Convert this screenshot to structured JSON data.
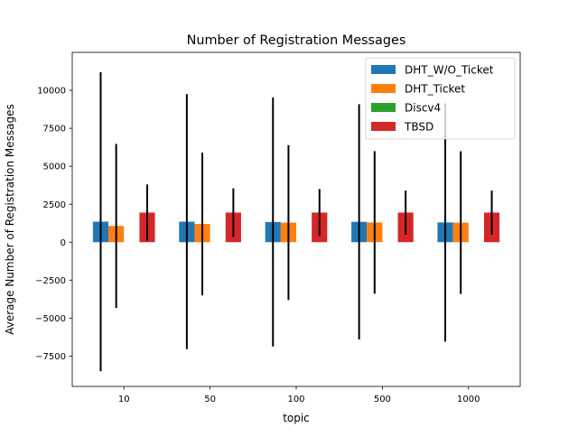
{
  "chart_data": {
    "type": "bar",
    "title": "Number of Registration Messages",
    "xlabel": "topic",
    "ylabel": "Average Number of Registration Messages",
    "categories": [
      "10",
      "50",
      "100",
      "500",
      "1000"
    ],
    "ylim": [
      -9500,
      12500
    ],
    "yticks": [
      -7500,
      -5000,
      -2500,
      0,
      2500,
      5000,
      7500,
      10000
    ],
    "ytick_labels": [
      "−7500",
      "−5000",
      "−2500",
      "0",
      "2500",
      "5000",
      "7500",
      "10000"
    ],
    "grid": false,
    "legend_position": "top-right",
    "series": [
      {
        "name": "DHT_W/O_Ticket",
        "color": "#1f77b4",
        "values": [
          1350,
          1350,
          1330,
          1340,
          1300
        ],
        "errors": [
          9850,
          8400,
          8200,
          7750,
          7850
        ]
      },
      {
        "name": "DHT_Ticket",
        "color": "#ff7f0e",
        "values": [
          1070,
          1200,
          1290,
          1300,
          1290
        ],
        "errors": [
          5400,
          4700,
          5100,
          4700,
          4700
        ]
      },
      {
        "name": "Discv4",
        "color": "#2ca02c",
        "values": [
          0,
          0,
          0,
          0,
          0
        ],
        "errors": [
          0,
          0,
          0,
          0,
          0
        ]
      },
      {
        "name": "TBSD",
        "color": "#d62728",
        "values": [
          1950,
          1950,
          1950,
          1950,
          1950
        ],
        "errors": [
          1850,
          1600,
          1550,
          1450,
          1450
        ]
      }
    ]
  }
}
